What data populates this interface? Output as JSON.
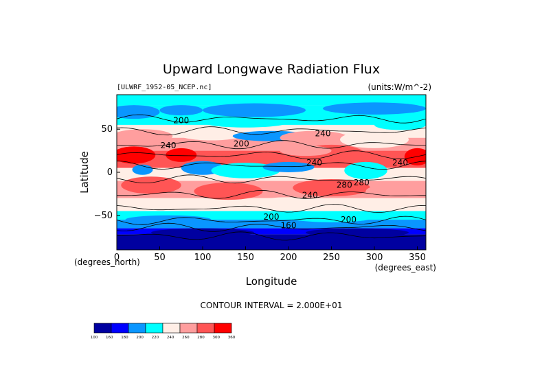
{
  "chart_data": {
    "type": "heatmap",
    "title": "Upward Longwave Radiation Flux",
    "file_label": "[ULWRF_1952-05_NCEP.nc]",
    "units_label": "(units:W/m^-2)",
    "xlabel": "Longitude",
    "ylabel": "Latitude",
    "x_units": "(degrees_east)",
    "y_units": "(degrees_north)",
    "xlim": [
      0,
      360
    ],
    "ylim": [
      -90,
      90
    ],
    "x_ticks": [
      0,
      50,
      100,
      150,
      200,
      250,
      300,
      350
    ],
    "y_ticks": [
      -50,
      0,
      50
    ],
    "contour_interval_text": "CONTOUR INTERVAL = 2.000E+01",
    "contour_labels": [
      "200",
      "240",
      "200",
      "240",
      "240",
      "240",
      "280",
      "240",
      "200",
      "200",
      "280",
      "160"
    ],
    "colorbar": {
      "levels": [
        "100",
        "160",
        "180",
        "200",
        "220",
        "240",
        "260",
        "280",
        "300",
        "360"
      ],
      "colors": [
        "#0000a0",
        "#0000ff",
        "#0a96ff",
        "#00ffff",
        "#ffeee6",
        "#ff9e9e",
        "#ff5555",
        "#ff0000"
      ]
    },
    "palette": {
      "c1": "#0000a0",
      "c2": "#0000ff",
      "c3": "#0a96ff",
      "c4": "#00ffff",
      "c5": "#ffeee6",
      "c6": "#ff9e9e",
      "c7": "#ff5555",
      "c8": "#ff0000"
    }
  }
}
